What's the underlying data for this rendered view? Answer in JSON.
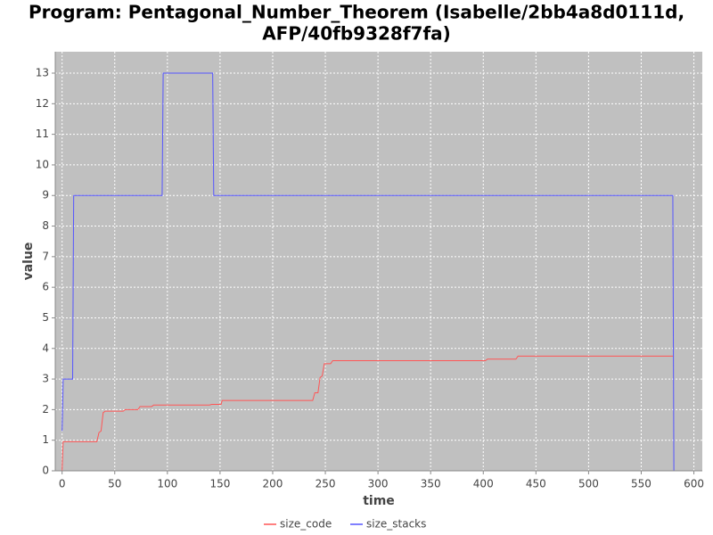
{
  "chart_data": {
    "type": "line",
    "title": [
      "Program: Pentagonal_Number_Theorem (Isabelle/2bb4a8d0111d,",
      "AFP/40fb9328f7fa)"
    ],
    "x_label": "time",
    "y_label": "value",
    "x": [
      0,
      0.5,
      1,
      10,
      11,
      33,
      35,
      37,
      39,
      41,
      58,
      60,
      72,
      74,
      85,
      87,
      95,
      96,
      140,
      142,
      143,
      144,
      151,
      152,
      238,
      240,
      243,
      245,
      247,
      249,
      255,
      257,
      402,
      404,
      431,
      433,
      580,
      581
    ],
    "series": [
      {
        "name": "size_code",
        "color": "#ff5555",
        "values": [
          0,
          0.5,
          0.95,
          0.95,
          0.95,
          0.95,
          1.25,
          1.3,
          1.9,
          1.95,
          1.95,
          2,
          2,
          2.1,
          2.1,
          2.15,
          2.15,
          2.15,
          2.15,
          2.17,
          2.17,
          2.17,
          2.17,
          2.3,
          2.3,
          2.55,
          2.55,
          3.05,
          3.1,
          3.5,
          3.5,
          3.6,
          3.6,
          3.65,
          3.65,
          3.75,
          3.75,
          null
        ]
      },
      {
        "name": "size_stacks",
        "color": "#5555ff",
        "values": [
          1.3,
          2,
          3,
          3,
          9,
          9,
          9,
          9,
          9,
          9,
          9,
          9,
          9,
          9,
          9,
          9,
          9,
          13,
          13,
          13,
          13,
          9,
          9,
          9,
          9,
          9,
          9,
          9,
          9,
          9,
          9,
          9,
          9,
          9,
          9,
          9,
          9,
          0
        ]
      }
    ],
    "xlim": [
      -6.5,
      608
    ],
    "ylim": [
      0,
      13.7
    ],
    "xticks": [
      0,
      50,
      100,
      150,
      200,
      250,
      300,
      350,
      400,
      450,
      500,
      550,
      600
    ],
    "yticks": [
      0,
      1,
      2,
      3,
      4,
      5,
      6,
      7,
      8,
      9,
      10,
      11,
      12,
      13
    ],
    "grid": true,
    "legend": "bottom"
  }
}
